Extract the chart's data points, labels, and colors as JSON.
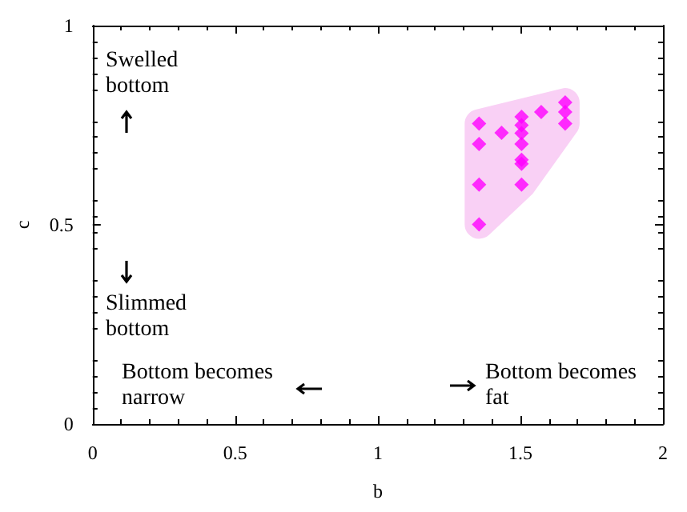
{
  "chart_data": {
    "type": "scatter",
    "xlabel": "b",
    "ylabel": "c",
    "xlim": [
      0,
      2
    ],
    "xticks": [
      0,
      0.5,
      1,
      1.5,
      2
    ],
    "ylim": [
      0,
      1
    ],
    "yticks": [
      0,
      0.5,
      1
    ],
    "grid": false,
    "marker": "diamond",
    "annotations": [
      "Swelled bottom",
      "Slimmed bottom",
      "Bottom becomes narrow",
      "Bottom becomes fat"
    ],
    "series": [
      {
        "color": "#ff00ff",
        "x": [
          1.355,
          1.355,
          1.355,
          1.355,
          1.434,
          1.504,
          1.504,
          1.504,
          1.504,
          1.504,
          1.504,
          1.504,
          1.573,
          1.657,
          1.657,
          1.657
        ],
        "values": [
          0.754,
          0.703,
          0.601,
          0.501,
          0.731,
          0.771,
          0.75,
          0.73,
          0.703,
          0.663,
          0.653,
          0.601,
          0.783,
          0.807,
          0.783,
          0.754
        ]
      }
    ]
  }
}
